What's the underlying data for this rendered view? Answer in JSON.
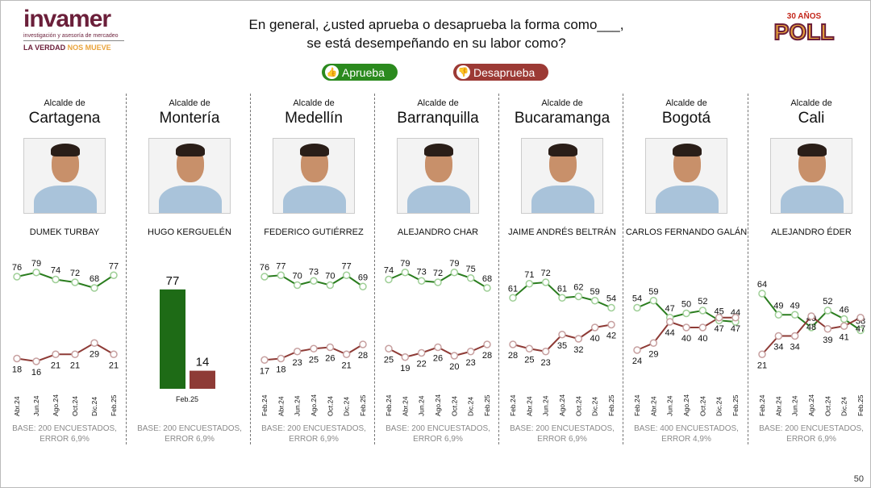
{
  "logo": {
    "word": "invamer",
    "sub": "investigación y asesoría de mercadeo",
    "tag_a": "LA VERDAD ",
    "tag_b": "NOS MUEVE"
  },
  "question": {
    "line1": "En general, ¿usted aprueba o desaprueba la forma como___,",
    "line2": "se está desempeñando en su labor como?"
  },
  "poll_logo": {
    "years": "30 AÑOS",
    "word": "POLL"
  },
  "legend": {
    "approve": "Aprueba",
    "disapprove": "Desaprueba",
    "approve_icon": "thumbs-up-icon",
    "disapprove_icon": "thumbs-down-icon"
  },
  "colors": {
    "approve": "#2b7d1f",
    "disapprove": "#8e3b36"
  },
  "page_number": "50",
  "chart_data": [
    {
      "type": "line",
      "title_prefix": "Alcalde de",
      "city": "Cartagena",
      "mayor": "DUMEK TURBAY",
      "x": [
        "Abr.24",
        "Jun.24",
        "Ago.24",
        "Oct.24",
        "Dic.24",
        "Feb.25"
      ],
      "series": [
        {
          "name": "Aprueba",
          "values": [
            76,
            79,
            74,
            72,
            68,
            77
          ]
        },
        {
          "name": "Desaprueba",
          "values": [
            18,
            16,
            21,
            21,
            29,
            21
          ]
        }
      ],
      "base": "BASE: 200 ENCUESTADOS,",
      "error": "ERROR 6,9%"
    },
    {
      "type": "bar",
      "title_prefix": "Alcalde de",
      "city": "Montería",
      "mayor": "HUGO KERGUELÉN",
      "x": [
        "Feb.25"
      ],
      "series": [
        {
          "name": "Aprueba",
          "values": [
            77
          ]
        },
        {
          "name": "Desaprueba",
          "values": [
            14
          ]
        }
      ],
      "base": "BASE: 200 ENCUESTADOS,",
      "error": "ERROR 6,9%"
    },
    {
      "type": "line",
      "title_prefix": "Alcalde de",
      "city": "Medellín",
      "mayor": "FEDERICO GUTIÉRREZ",
      "x": [
        "Feb.24",
        "Abr.24",
        "Jun.24",
        "Ago.24",
        "Oct.24",
        "Dic.24",
        "Feb.25"
      ],
      "series": [
        {
          "name": "Aprueba",
          "values": [
            76,
            77,
            70,
            73,
            70,
            77,
            69
          ]
        },
        {
          "name": "Desaprueba",
          "values": [
            17,
            18,
            23,
            25,
            26,
            21,
            28
          ]
        }
      ],
      "base": "BASE: 200 ENCUESTADOS,",
      "error": "ERROR 6,9%"
    },
    {
      "type": "line",
      "title_prefix": "Alcalde de",
      "city": "Barranquilla",
      "mayor": "ALEJANDRO CHAR",
      "x": [
        "Feb.24",
        "Abr.24",
        "Jun.24",
        "Ago.24",
        "Oct.24",
        "Dic.24",
        "Feb.25"
      ],
      "series": [
        {
          "name": "Aprueba",
          "values": [
            74,
            79,
            73,
            72,
            79,
            75,
            68
          ]
        },
        {
          "name": "Desaprueba",
          "values": [
            25,
            19,
            22,
            26,
            20,
            23,
            28
          ]
        }
      ],
      "base": "BASE: 200 ENCUESTADOS,",
      "error": "ERROR 6,9%"
    },
    {
      "type": "line",
      "title_prefix": "Alcalde de",
      "city": "Bucaramanga",
      "mayor": "JAIME ANDRÉS BELTRÁN",
      "x": [
        "Feb.24",
        "Abr.24",
        "Jun.24",
        "Ago.24",
        "Oct.24",
        "Dic.24",
        "Feb.25"
      ],
      "series": [
        {
          "name": "Aprueba",
          "values": [
            61,
            71,
            72,
            61,
            62,
            59,
            54
          ]
        },
        {
          "name": "Desaprueba",
          "values": [
            28,
            25,
            23,
            35,
            32,
            40,
            42
          ]
        }
      ],
      "base": "BASE: 200 ENCUESTADOS,",
      "error": "ERROR 6,9%"
    },
    {
      "type": "line",
      "title_prefix": "Alcalde de",
      "city": "Bogotá",
      "mayor": "CARLOS FERNANDO GALÁN",
      "x": [
        "Feb.24",
        "Abr.24",
        "Jun.24",
        "Ago.24",
        "Oct.24",
        "Dic.24",
        "Feb.25"
      ],
      "series": [
        {
          "name": "Aprueba",
          "values": [
            54,
            59,
            47,
            50,
            52,
            45,
            44
          ]
        },
        {
          "name": "Desaprueba",
          "values": [
            24,
            29,
            44,
            40,
            40,
            47,
            47
          ]
        }
      ],
      "base": "BASE: 400 ENCUESTADOS,",
      "error": "ERROR 4,9%"
    },
    {
      "type": "line",
      "title_prefix": "Alcalde de",
      "city": "Cali",
      "mayor": "ALEJANDRO ÉDER",
      "x": [
        "Feb.24",
        "Abr.24",
        "Jun.24",
        "Ago.24",
        "Oct.24",
        "Dic.24",
        "Feb.25"
      ],
      "series": [
        {
          "name": "Aprueba",
          "values": [
            64,
            49,
            49,
            40,
            52,
            46,
            38
          ]
        },
        {
          "name": "Desaprueba",
          "values": [
            21,
            34,
            34,
            48,
            39,
            41,
            47
          ]
        }
      ],
      "base": "BASE: 200 ENCUESTADOS,",
      "error": "ERROR 6,9%"
    }
  ]
}
